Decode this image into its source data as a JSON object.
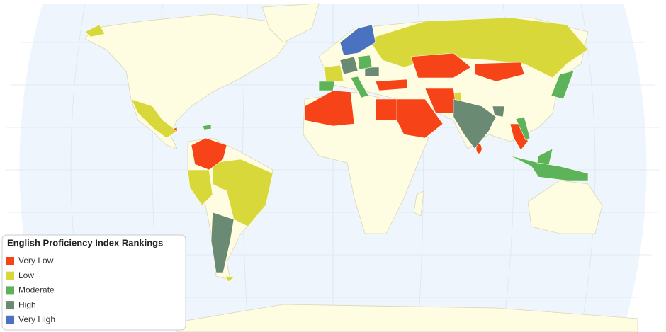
{
  "legend": {
    "title": "English Proficiency Index Rankings",
    "items": [
      {
        "label": "Very Low",
        "color": "#f64317"
      },
      {
        "label": "Low",
        "color": "#d8d83a"
      },
      {
        "label": "Moderate",
        "color": "#5db35a"
      },
      {
        "label": "High",
        "color": "#6a8a74"
      },
      {
        "label": "Very High",
        "color": "#4a72c0"
      }
    ]
  }
}
